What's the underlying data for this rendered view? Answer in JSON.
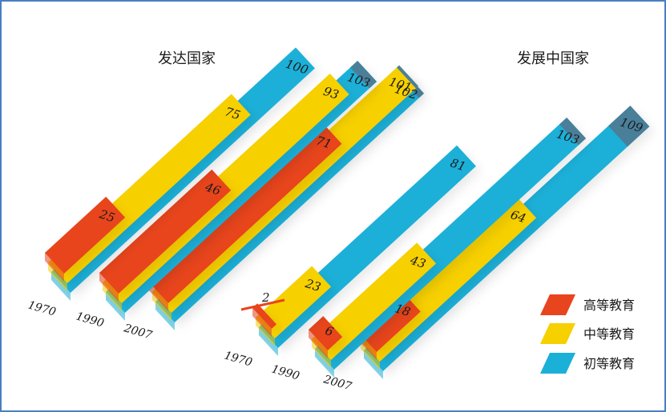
{
  "chart_data": {
    "type": "bar",
    "title": "",
    "xlabel": "",
    "ylabel": "",
    "groups": [
      {
        "name": "发达国家",
        "categories": [
          "1970",
          "1990",
          "2007"
        ],
        "series": [
          {
            "name": "初等教育",
            "values": [
              100,
              103,
              102
            ]
          },
          {
            "name": "中等教育",
            "values": [
              75,
              93,
              101
            ]
          },
          {
            "name": "高等教育",
            "values": [
              25,
              46,
              71
            ]
          }
        ]
      },
      {
        "name": "发展中国家",
        "categories": [
          "1970",
          "1990",
          "2007"
        ],
        "series": [
          {
            "name": "初等教育",
            "values": [
              81,
              103,
              109
            ]
          },
          {
            "name": "中等教育",
            "values": [
              23,
              43,
              64
            ]
          },
          {
            "name": "高等教育",
            "values": [
              2,
              6,
              18
            ]
          }
        ]
      }
    ],
    "legend": {
      "position": "right",
      "items": [
        {
          "name": "高等教育",
          "color": "#e8441e"
        },
        {
          "name": "中等教育",
          "color": "#f7d000"
        },
        {
          "name": "初等教育",
          "color": "#1ab0d8"
        }
      ]
    },
    "colors": {
      "初等教育": "#1ab0d8",
      "中等教育": "#f7d000",
      "高等教育": "#e8441e",
      "overflow": "#4a7f9a",
      "frame": "#4a7fc0"
    }
  }
}
